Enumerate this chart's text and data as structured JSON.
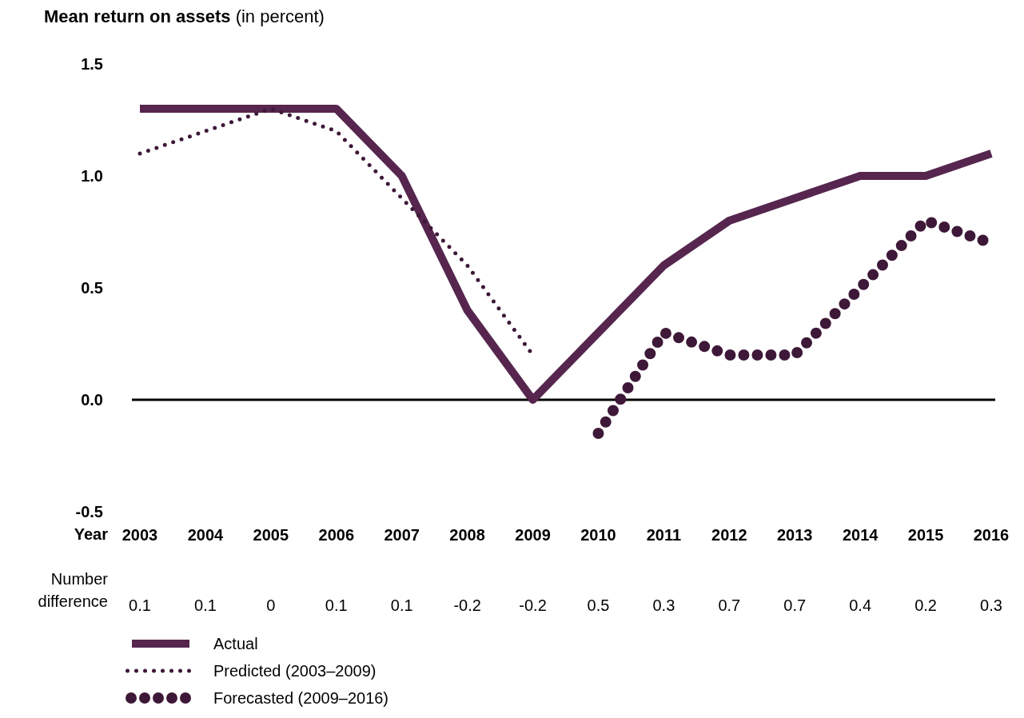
{
  "chart_data": {
    "type": "line",
    "title": "Mean return on assets",
    "subtitle": "(in percent)",
    "xlabel": "Year",
    "categories": [
      "2003",
      "2004",
      "2005",
      "2006",
      "2007",
      "2008",
      "2009",
      "2010",
      "2011",
      "2012",
      "2013",
      "2014",
      "2015",
      "2016"
    ],
    "series": [
      {
        "name": "Actual",
        "color": "#56264f",
        "line_style": "solid",
        "values": [
          1.3,
          1.3,
          1.3,
          1.3,
          1.0,
          0.4,
          0.0,
          0.3,
          0.6,
          0.8,
          0.9,
          1.0,
          1.0,
          1.1
        ]
      },
      {
        "name": "Predicted (2003–2009)",
        "color": "#3e1838",
        "line_style": "dotted",
        "values": [
          1.1,
          1.2,
          1.3,
          1.2,
          0.9,
          0.6,
          0.2,
          null,
          null,
          null,
          null,
          null,
          null,
          null
        ]
      },
      {
        "name": "Forecasted (2009–2016)",
        "color": "#3e1838",
        "line_style": "dotted-large",
        "values": [
          null,
          null,
          null,
          null,
          null,
          null,
          null,
          -0.15,
          0.3,
          0.2,
          0.2,
          0.5,
          0.8,
          0.7
        ]
      }
    ],
    "ylim": [
      -0.5,
      1.5
    ],
    "yticks": [
      {
        "value": -0.5,
        "label": "-0.5"
      },
      {
        "value": 0,
        "label": "0.0"
      },
      {
        "value": 0.5,
        "label": "0.5"
      },
      {
        "value": 1,
        "label": "1.0"
      },
      {
        "value": 1.5,
        "label": "1.5"
      }
    ],
    "ref_lines": [
      {
        "axis": "y",
        "value": 0,
        "color": "#000000"
      }
    ],
    "annotations": [
      "Number difference",
      "0.1",
      "0.1",
      "0",
      "0.1",
      "0.1",
      "-0.2",
      "-0.2",
      "0.5",
      "0.3",
      "0.7",
      "0.7",
      "0.4",
      "0.2",
      "0.3"
    ],
    "grid": false,
    "legend": "bottom left"
  }
}
